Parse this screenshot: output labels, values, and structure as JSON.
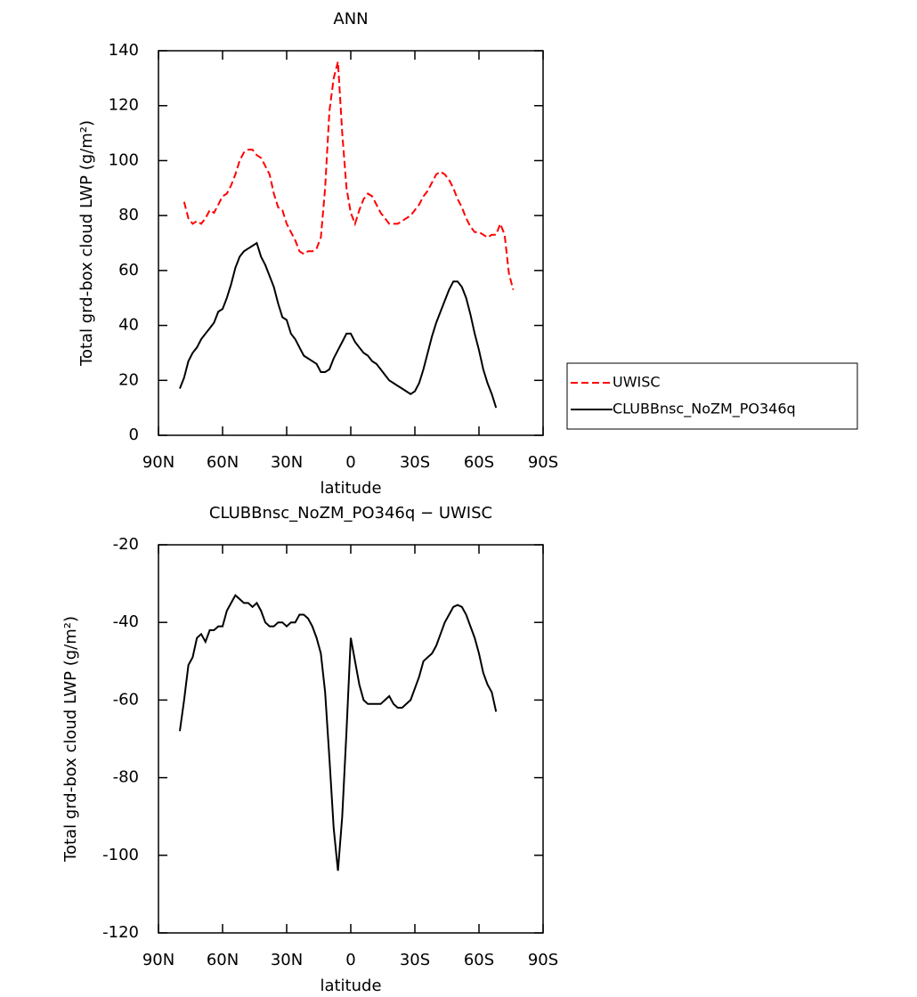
{
  "chart_data": [
    {
      "type": "line",
      "title": "ANN",
      "xlabel": "latitude",
      "ylabel": "Total grd-box cloud LWP (g/m²)",
      "xlim": [
        90,
        -90
      ],
      "ylim": [
        0,
        140
      ],
      "xticks": [
        {
          "value": 90,
          "label": "90N"
        },
        {
          "value": 60,
          "label": "60N"
        },
        {
          "value": 30,
          "label": "30N"
        },
        0,
        {
          "value": -30,
          "label": "30S"
        },
        {
          "value": -60,
          "label": "60S"
        },
        {
          "value": -90,
          "label": "90S"
        }
      ],
      "yticks": [
        0,
        20,
        40,
        60,
        80,
        100,
        120,
        140
      ],
      "legend": "right",
      "series": [
        {
          "name": "UWISC",
          "color": "#ff0000",
          "style": "dashed",
          "x": [
            78,
            76,
            74,
            72,
            70,
            68,
            66,
            64,
            62,
            60,
            58,
            56,
            54,
            52,
            50,
            48,
            46,
            44,
            42,
            40,
            38,
            36,
            34,
            32,
            30,
            28,
            26,
            24,
            22,
            20,
            18,
            16,
            14,
            12,
            10,
            8,
            6,
            4,
            2,
            0,
            -2,
            -4,
            -6,
            -8,
            -10,
            -12,
            -14,
            -16,
            -18,
            -20,
            -22,
            -24,
            -26,
            -28,
            -30,
            -32,
            -34,
            -36,
            -38,
            -40,
            -42,
            -44,
            -46,
            -48,
            -50,
            -52,
            -54,
            -56,
            -58,
            -60,
            -62,
            -64,
            -66,
            -68,
            -70,
            -72,
            -74,
            -76
          ],
          "values": [
            85,
            79,
            77,
            78,
            77,
            79,
            82,
            81,
            84,
            87,
            88,
            91,
            95,
            100,
            103,
            104,
            104,
            102,
            101,
            98,
            95,
            88,
            83,
            82,
            77,
            74,
            71,
            67,
            66,
            67,
            67,
            68,
            72,
            90,
            118,
            130,
            136,
            110,
            90,
            81,
            77,
            82,
            86,
            88,
            87,
            84,
            81,
            79,
            77,
            77,
            77,
            78,
            79,
            80,
            82,
            84,
            87,
            89,
            92,
            95,
            96,
            95,
            93,
            90,
            86,
            83,
            79,
            76,
            74,
            74,
            73,
            72,
            73,
            73,
            77,
            73,
            59,
            53
          ]
        },
        {
          "name": "CLUBBnsc_NoZM_PO346q",
          "color": "#000000",
          "style": "solid",
          "x": [
            80,
            78,
            76,
            74,
            72,
            70,
            68,
            66,
            64,
            62,
            60,
            58,
            56,
            54,
            52,
            50,
            48,
            46,
            44,
            42,
            40,
            38,
            36,
            34,
            32,
            30,
            28,
            26,
            24,
            22,
            20,
            18,
            16,
            14,
            12,
            10,
            8,
            6,
            4,
            2,
            0,
            -2,
            -4,
            -6,
            -8,
            -10,
            -12,
            -14,
            -16,
            -18,
            -20,
            -22,
            -24,
            -26,
            -28,
            -30,
            -32,
            -34,
            -36,
            -38,
            -40,
            -42,
            -44,
            -46,
            -48,
            -50,
            -52,
            -54,
            -56,
            -58,
            -60,
            -62,
            -64,
            -66,
            -68
          ],
          "values": [
            17,
            21,
            27,
            30,
            32,
            35,
            37,
            39,
            41,
            45,
            46,
            50,
            55,
            61,
            65,
            67,
            68,
            69,
            70,
            65,
            62,
            58,
            54,
            48,
            43,
            42,
            37,
            35,
            32,
            29,
            28,
            27,
            26,
            23,
            23,
            24,
            28,
            31,
            34,
            37,
            37,
            34,
            32,
            30,
            29,
            27,
            26,
            24,
            22,
            20,
            19,
            18,
            17,
            16,
            15,
            16,
            19,
            24,
            30,
            36,
            41,
            45,
            49,
            53,
            56,
            56,
            54,
            50,
            44,
            37,
            31,
            24,
            19,
            15,
            10
          ]
        }
      ]
    },
    {
      "type": "line",
      "title": "CLUBBnsc_NoZM_PO346q − UWISC",
      "xlabel": "latitude",
      "ylabel": "Total grd-box cloud LWP (g/m²)",
      "xlim": [
        90,
        -90
      ],
      "ylim": [
        -120,
        -20
      ],
      "xticks": [
        {
          "value": 90,
          "label": "90N"
        },
        {
          "value": 60,
          "label": "60N"
        },
        {
          "value": 30,
          "label": "30N"
        },
        0,
        {
          "value": -30,
          "label": "30S"
        },
        {
          "value": -60,
          "label": "60S"
        },
        {
          "value": -90,
          "label": "90S"
        }
      ],
      "yticks": [
        -120,
        -100,
        -80,
        -60,
        -40,
        -20
      ],
      "series": [
        {
          "color": "#000000",
          "style": "solid",
          "x": [
            80,
            78,
            76,
            74,
            72,
            70,
            68,
            66,
            64,
            62,
            60,
            58,
            56,
            54,
            52,
            50,
            48,
            46,
            44,
            42,
            40,
            38,
            36,
            34,
            32,
            30,
            28,
            26,
            24,
            22,
            20,
            18,
            16,
            14,
            12,
            10,
            8,
            6,
            4,
            2,
            0,
            -2,
            -4,
            -6,
            -8,
            -10,
            -12,
            -14,
            -16,
            -18,
            -20,
            -22,
            -24,
            -26,
            -28,
            -30,
            -32,
            -34,
            -36,
            -38,
            -40,
            -42,
            -44,
            -46,
            -48,
            -50,
            -52,
            -54,
            -56,
            -58,
            -60,
            -62,
            -64,
            -66,
            -68
          ],
          "values": [
            -68,
            -60,
            -51,
            -49,
            -44,
            -43,
            -45,
            -42,
            -42,
            -41,
            -41,
            -37,
            -35,
            -33,
            -34,
            -35,
            -35,
            -36,
            -35,
            -37,
            -40,
            -41,
            -41,
            -40,
            -40,
            -41,
            -40,
            -40,
            -38,
            -38,
            -39,
            -41,
            -44,
            -48,
            -58,
            -75,
            -93,
            -104,
            -90,
            -68,
            -44,
            -50,
            -56,
            -60,
            -61,
            -61,
            -61,
            -61,
            -60,
            -59,
            -61,
            -62,
            -62,
            -61,
            -60,
            -57,
            -54,
            -50,
            -49,
            -48,
            -46,
            -43,
            -40,
            -38,
            -36,
            -35.5,
            -36,
            -38,
            -41,
            -44,
            -48,
            -53,
            -56,
            -58,
            -63
          ]
        }
      ]
    }
  ]
}
